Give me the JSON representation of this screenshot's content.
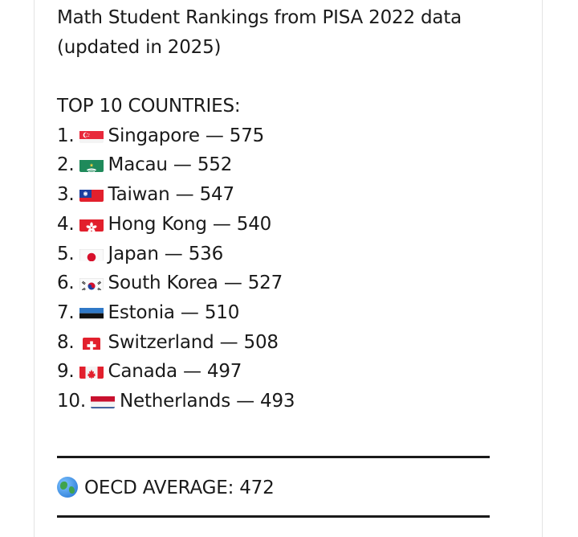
{
  "post": {
    "title_line1": "Math Student Rankings from PISA 2022 data",
    "title_line2": "(updated in 2025)",
    "section_heading": "TOP 10 COUNTRIES:",
    "rankings": [
      {
        "rank": "1.",
        "flag": "singapore-flag-icon",
        "text": "Singapore — 575"
      },
      {
        "rank": "2.",
        "flag": "macau-flag-icon",
        "text": "Macau — 552"
      },
      {
        "rank": "3.",
        "flag": "taiwan-flag-icon",
        "text": "Taiwan — 547"
      },
      {
        "rank": "4.",
        "flag": "hong-kong-flag-icon",
        "text": "Hong Kong — 540"
      },
      {
        "rank": "5.",
        "flag": "japan-flag-icon",
        "text": "Japan — 536"
      },
      {
        "rank": "6.",
        "flag": "south-korea-flag-icon",
        "text": "South Korea — 527"
      },
      {
        "rank": "7.",
        "flag": "estonia-flag-icon",
        "text": "Estonia — 510"
      },
      {
        "rank": "8.",
        "flag": "switzerland-flag-icon",
        "text": "Switzerland — 508"
      },
      {
        "rank": "9.",
        "flag": "canada-flag-icon",
        "text": "Canada — 497"
      },
      {
        "rank": "10.",
        "flag": "netherlands-flag-icon",
        "text": "Netherlands — 493"
      }
    ],
    "oecd": {
      "icon": "globe-icon",
      "text": "OECD AVERAGE: 472"
    }
  }
}
